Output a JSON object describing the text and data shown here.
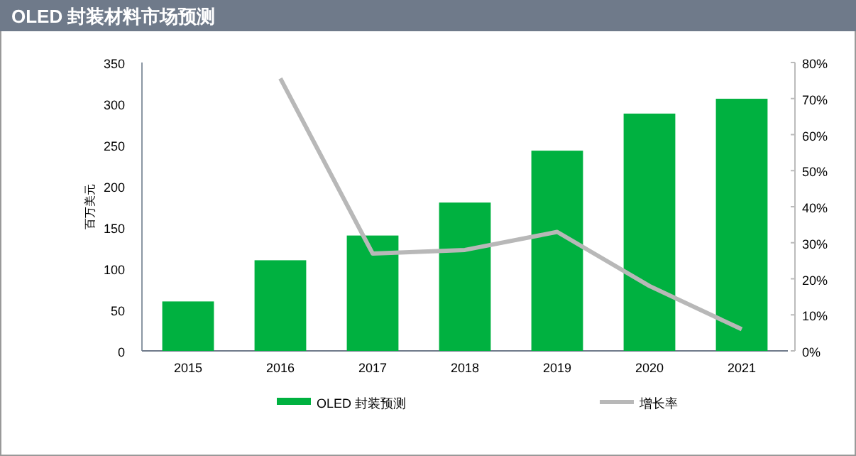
{
  "chart_data": {
    "type": "bar",
    "title": "OLED 封装材料市场预测",
    "ylabel": "百万美元",
    "categories": [
      "2015",
      "2016",
      "2017",
      "2018",
      "2019",
      "2020",
      "2021"
    ],
    "series": [
      {
        "name": "OLED 封装预测",
        "color": "#00b140",
        "values": [
          60,
          110,
          140,
          180,
          243,
          288,
          306
        ]
      },
      {
        "name": "增长率",
        "type": "line",
        "axis": "y2",
        "color": "#b8b8b8",
        "values": [
          null,
          75.6,
          27,
          28,
          33,
          18,
          6
        ]
      }
    ],
    "ylim": [
      0,
      350
    ],
    "yticks": [
      0,
      50,
      100,
      150,
      200,
      250,
      300,
      350
    ],
    "y2lim": [
      0,
      80
    ],
    "y2ticks": [
      {
        "value": 0,
        "label": "0%"
      },
      {
        "value": 10,
        "label": "10%"
      },
      {
        "value": 20,
        "label": "20%"
      },
      {
        "value": 30,
        "label": "30%"
      },
      {
        "value": 40,
        "label": "40%"
      },
      {
        "value": 50,
        "label": "50%"
      },
      {
        "value": 60,
        "label": "60%"
      },
      {
        "value": 70,
        "label": "70%"
      },
      {
        "value": 80,
        "label": "80%"
      }
    ],
    "legend": "bottom"
  }
}
